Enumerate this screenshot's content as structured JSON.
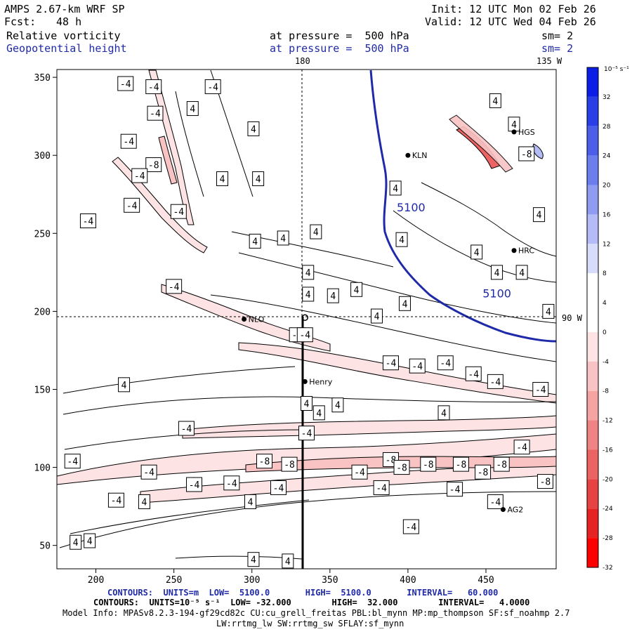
{
  "header": {
    "model": "AMPS 2.67-km WRF SP",
    "fcst_label": "Fcst:",
    "fcst_value": "48 h",
    "init": "Init: 12 UTC Mon 02 Feb 26",
    "valid": "Valid: 12 UTC Wed 04 Feb 26",
    "field1": "Relative vorticity",
    "field2": "Geopotential height",
    "pressure1": "at pressure =  500 hPa",
    "pressure2": "at pressure =  500 hPa",
    "sm1": "sm= 2",
    "sm2": "sm= 2",
    "lon_top_1": "180",
    "lon_top_2": "135 W",
    "lon_right": "90 W"
  },
  "colorbar": {
    "title": "10⁻⁵ s⁻¹",
    "ticks": [
      "32",
      "28",
      "24",
      "20",
      "16",
      "12",
      "8",
      "4",
      "0",
      "-4",
      "-8",
      "-12",
      "-16",
      "-20",
      "-24",
      "-28",
      "-32"
    ],
    "colors": [
      "#0a1ee6",
      "#2a3ee8",
      "#4a5eea",
      "#6c7eee",
      "#8f9cf2",
      "#b3bcf6",
      "#d7dcfb",
      "#ffffff",
      "#ffffff",
      "#fde3e3",
      "#f9c3c3",
      "#f5a3a3",
      "#f08383",
      "#ec6363",
      "#e84343",
      "#e52323",
      "#ff0000"
    ]
  },
  "stations": [
    {
      "name": "KLN",
      "x": 400,
      "y": 300
    },
    {
      "name": "HRC",
      "x": 468,
      "y": 239
    },
    {
      "name": "NLO",
      "x": 295,
      "y": 195
    },
    {
      "name": "Henry",
      "x": 334,
      "y": 155
    },
    {
      "name": "AG2",
      "x": 461,
      "y": 73
    },
    {
      "name": "HGS",
      "x": 468,
      "y": 315
    }
  ],
  "chart_data": {
    "type": "contour",
    "xlim": [
      175,
      495
    ],
    "ylim": [
      35,
      355
    ],
    "xticks": [
      200,
      250,
      300,
      350,
      400,
      450
    ],
    "yticks": [
      50,
      100,
      150,
      200,
      250,
      300,
      350
    ],
    "height_contours": {
      "units": "m",
      "low": "5100.0",
      "high": "5100.0",
      "interval": "60.000",
      "labels": [
        {
          "text": "5100",
          "x": 402,
          "y": 264
        },
        {
          "text": "5100",
          "x": 457,
          "y": 209
        }
      ]
    },
    "vorticity_contours": {
      "units": "10⁻⁵ s⁻¹",
      "low": "-32.000",
      "high": "32.000",
      "interval": "4.0000",
      "labels": [
        {
          "text": "-4",
          "x": 219,
          "y": 346
        },
        {
          "text": "-4",
          "x": 237,
          "y": 344
        },
        {
          "text": "-4",
          "x": 275,
          "y": 344
        },
        {
          "text": "-4",
          "x": 238,
          "y": 327
        },
        {
          "text": "4",
          "x": 262,
          "y": 330
        },
        {
          "text": "4",
          "x": 301,
          "y": 317
        },
        {
          "text": "-4",
          "x": 221,
          "y": 309
        },
        {
          "text": "-8",
          "x": 237,
          "y": 294
        },
        {
          "text": "-4",
          "x": 228,
          "y": 287
        },
        {
          "text": "4",
          "x": 281,
          "y": 285
        },
        {
          "text": "4",
          "x": 304,
          "y": 285
        },
        {
          "text": "-4",
          "x": 223,
          "y": 268
        },
        {
          "text": "-4",
          "x": 195,
          "y": 258
        },
        {
          "text": "-4",
          "x": 253,
          "y": 264
        },
        {
          "text": "4",
          "x": 302,
          "y": 245
        },
        {
          "text": "4",
          "x": 320,
          "y": 247
        },
        {
          "text": "4",
          "x": 341,
          "y": 251
        },
        {
          "text": "4",
          "x": 336,
          "y": 225
        },
        {
          "text": "-4",
          "x": 250,
          "y": 216
        },
        {
          "text": "4",
          "x": 336,
          "y": 211
        },
        {
          "text": "4",
          "x": 352,
          "y": 210
        },
        {
          "text": "4",
          "x": 367,
          "y": 214
        },
        {
          "text": "4",
          "x": 398,
          "y": 205
        },
        {
          "text": "4",
          "x": 380,
          "y": 197
        },
        {
          "text": "-4",
          "x": 329,
          "y": 185
        },
        {
          "text": "-4",
          "x": 334,
          "y": 185
        },
        {
          "text": "4",
          "x": 392,
          "y": 279
        },
        {
          "text": "4",
          "x": 396,
          "y": 246
        },
        {
          "text": "4",
          "x": 444,
          "y": 238
        },
        {
          "text": "4",
          "x": 457,
          "y": 225
        },
        {
          "text": "4",
          "x": 473,
          "y": 225
        },
        {
          "text": "4",
          "x": 490,
          "y": 200
        },
        {
          "text": "4",
          "x": 484,
          "y": 262
        },
        {
          "text": "4",
          "x": 468,
          "y": 320
        },
        {
          "text": "4",
          "x": 456,
          "y": 335
        },
        {
          "text": "-8",
          "x": 476,
          "y": 301
        },
        {
          "text": "-4",
          "x": 389,
          "y": 167
        },
        {
          "text": "-4",
          "x": 406,
          "y": 165
        },
        {
          "text": "-4",
          "x": 424,
          "y": 167
        },
        {
          "text": "-4",
          "x": 442,
          "y": 160
        },
        {
          "text": "-4",
          "x": 456,
          "y": 155
        },
        {
          "text": "-4",
          "x": 485,
          "y": 150
        },
        {
          "text": "4",
          "x": 218,
          "y": 153
        },
        {
          "text": "4",
          "x": 335,
          "y": 141
        },
        {
          "text": "4",
          "x": 355,
          "y": 140
        },
        {
          "text": "4",
          "x": 343,
          "y": 135
        },
        {
          "text": "4",
          "x": 423,
          "y": 135
        },
        {
          "text": "-4",
          "x": 258,
          "y": 125
        },
        {
          "text": "-4",
          "x": 335,
          "y": 122
        },
        {
          "text": "-4",
          "x": 473,
          "y": 113
        },
        {
          "text": "-4",
          "x": 185,
          "y": 104
        },
        {
          "text": "-8",
          "x": 308,
          "y": 104
        },
        {
          "text": "-8",
          "x": 324,
          "y": 102
        },
        {
          "text": "-8",
          "x": 389,
          "y": 105
        },
        {
          "text": "-8",
          "x": 396,
          "y": 100
        },
        {
          "text": "-8",
          "x": 413,
          "y": 102
        },
        {
          "text": "-8",
          "x": 434,
          "y": 102
        },
        {
          "text": "-8",
          "x": 448,
          "y": 97
        },
        {
          "text": "-8",
          "x": 460,
          "y": 102
        },
        {
          "text": "-8",
          "x": 488,
          "y": 91
        },
        {
          "text": "-4",
          "x": 369,
          "y": 97
        },
        {
          "text": "-4",
          "x": 234,
          "y": 97
        },
        {
          "text": "-4",
          "x": 263,
          "y": 89
        },
        {
          "text": "-4",
          "x": 287,
          "y": 90
        },
        {
          "text": "-4",
          "x": 317,
          "y": 87
        },
        {
          "text": "-4",
          "x": 383,
          "y": 87
        },
        {
          "text": "-4",
          "x": 430,
          "y": 86
        },
        {
          "text": "-4",
          "x": 456,
          "y": 78
        },
        {
          "text": "-4",
          "x": 213,
          "y": 79
        },
        {
          "text": "4",
          "x": 231,
          "y": 78
        },
        {
          "text": "4",
          "x": 299,
          "y": 78
        },
        {
          "text": "-4",
          "x": 402,
          "y": 62
        },
        {
          "text": "4",
          "x": 187,
          "y": 52
        },
        {
          "text": "4",
          "x": 196,
          "y": 53
        },
        {
          "text": "4",
          "x": 301,
          "y": 41
        },
        {
          "text": "4",
          "x": 323,
          "y": 40
        }
      ]
    }
  },
  "footer": {
    "line1": "CONTOURS:  UNITS=m  LOW=  5100.0       HIGH=  5100.0       INTERVAL=   60.000",
    "line2": "CONTOURS:  UNITS=10⁻⁵ s⁻¹  LOW= -32.000        HIGH=  32.000        INTERVAL=   4.0000",
    "line3": "Model Info: MPASv8.2.3-194-gf29cd82c CU:cu_grell_freitas PBL:bl_mynn MP:mp_thompson SF:sf_noahmp 2.7",
    "line4": "LW:rrtmg_lw SW:rrtmg_sw SFLAY:sf_mynn"
  }
}
